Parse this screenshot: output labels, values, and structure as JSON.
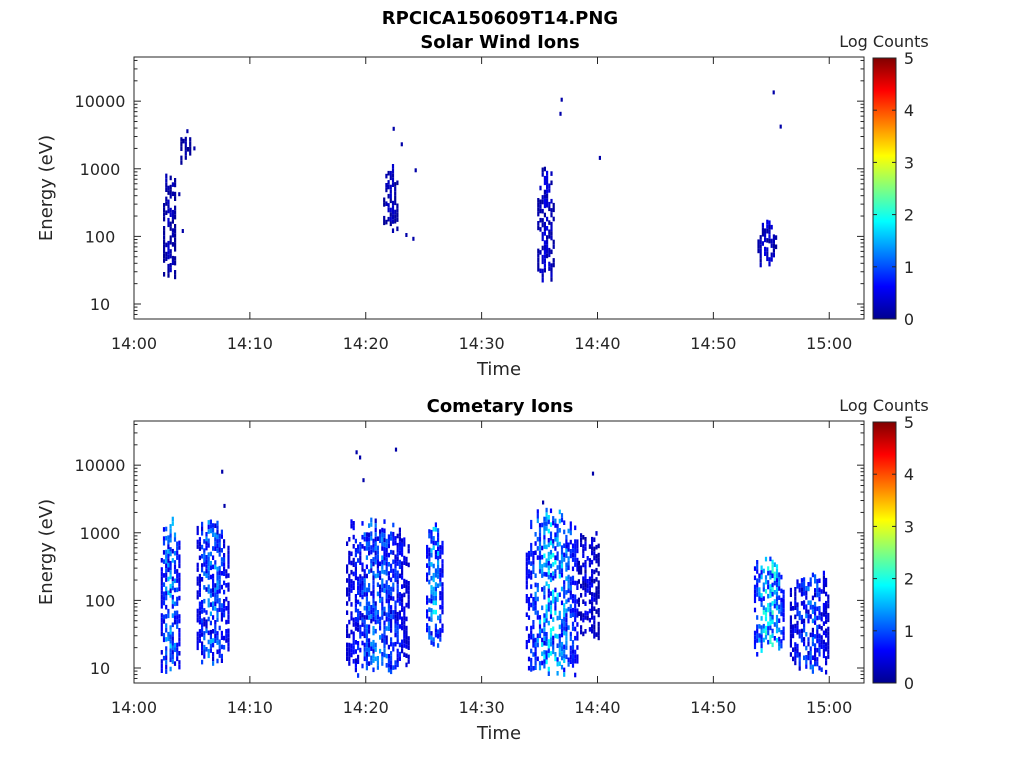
{
  "figure": {
    "title": "RPCICA150609T14.PNG"
  },
  "colorbar": {
    "label": "Log Counts",
    "range": [
      0,
      5
    ],
    "ticks": [
      "0",
      "1",
      "2",
      "3",
      "4",
      "5"
    ],
    "colormap": "jet"
  },
  "chart_data": [
    {
      "type": "heatmap",
      "title": "Solar Wind Ions",
      "xlabel": "Time",
      "ylabel": "Energy (eV)",
      "yscale": "log",
      "xlim": [
        "14:00",
        "15:03"
      ],
      "ylim": [
        6,
        45000
      ],
      "xticks": [
        "14:00",
        "14:10",
        "14:20",
        "14:30",
        "14:40",
        "14:50",
        "15:00"
      ],
      "yticks": [
        "10",
        "100",
        "1000",
        "10000"
      ],
      "grid": false,
      "clusters": [
        {
          "t_start": "14:02.5",
          "t_end": "14:03.6",
          "e_low": 25,
          "e_high": 1000,
          "level": 0.3
        },
        {
          "t_start": "14:04.0",
          "t_end": "14:05.0",
          "e_low": 1000,
          "e_high": 3500,
          "level": 0.2
        },
        {
          "t_start": "14:21.5",
          "t_end": "14:22.8",
          "e_low": 110,
          "e_high": 1200,
          "level": 0.3
        },
        {
          "t_start": "14:34.8",
          "t_end": "14:36.3",
          "e_low": 20,
          "e_high": 1100,
          "level": 0.4
        },
        {
          "t_start": "14:53.8",
          "t_end": "14:55.5",
          "e_low": 35,
          "e_high": 180,
          "level": 0.4
        }
      ],
      "points": [
        {
          "t": "14:04.6",
          "e": 3600,
          "level": 0.2
        },
        {
          "t": "14:05.2",
          "e": 2000,
          "level": 0.2
        },
        {
          "t": "14:03.9",
          "e": 420,
          "level": 0.2
        },
        {
          "t": "14:04.2",
          "e": 120,
          "level": 0.2
        },
        {
          "t": "14:22.4",
          "e": 3900,
          "level": 0.2
        },
        {
          "t": "14:23.1",
          "e": 2300,
          "level": 0.2
        },
        {
          "t": "14:24.3",
          "e": 950,
          "level": 0.2
        },
        {
          "t": "14:23.5",
          "e": 105,
          "level": 0.2
        },
        {
          "t": "14:24.1",
          "e": 92,
          "level": 0.2
        },
        {
          "t": "14:36.9",
          "e": 10500,
          "level": 0.2
        },
        {
          "t": "14:36.8",
          "e": 6500,
          "level": 0.2
        },
        {
          "t": "14:40.2",
          "e": 1450,
          "level": 0.2
        },
        {
          "t": "14:55.2",
          "e": 13500,
          "level": 0.2
        },
        {
          "t": "14:55.8",
          "e": 4200,
          "level": 0.2
        }
      ]
    },
    {
      "type": "heatmap",
      "title": "Cometary Ions",
      "xlabel": "Time",
      "ylabel": "Energy (eV)",
      "yscale": "log",
      "xlim": [
        "14:00",
        "15:03"
      ],
      "ylim": [
        6,
        45000
      ],
      "xticks": [
        "14:00",
        "14:10",
        "14:20",
        "14:30",
        "14:40",
        "14:50",
        "15:00"
      ],
      "yticks": [
        "10",
        "100",
        "1000",
        "10000"
      ],
      "grid": false,
      "clusters": [
        {
          "t_start": "14:02.3",
          "t_end": "14:04.1",
          "e_low": 8,
          "e_high": 2000,
          "level": 1.2
        },
        {
          "t_start": "14:05.4",
          "t_end": "14:08.3",
          "e_low": 12,
          "e_high": 1700,
          "level": 1.1
        },
        {
          "t_start": "14:18.3",
          "t_end": "14:23.8",
          "e_low": 8,
          "e_high": 1800,
          "level": 1.0
        },
        {
          "t_start": "14:25.2",
          "t_end": "14:26.7",
          "e_low": 20,
          "e_high": 1500,
          "level": 1.3
        },
        {
          "t_start": "14:33.8",
          "t_end": "14:38.3",
          "e_low": 8,
          "e_high": 2500,
          "level": 1.4
        },
        {
          "t_start": "14:38.3",
          "t_end": "14:40.2",
          "e_low": 25,
          "e_high": 1200,
          "level": 0.5
        },
        {
          "t_start": "14:53.5",
          "t_end": "14:56.2",
          "e_low": 15,
          "e_high": 480,
          "level": 1.6
        },
        {
          "t_start": "14:56.6",
          "t_end": "15:00.0",
          "e_low": 8,
          "e_high": 300,
          "level": 0.9
        }
      ],
      "points": [
        {
          "t": "14:07.6",
          "e": 8000,
          "level": 0.2
        },
        {
          "t": "14:07.8",
          "e": 2500,
          "level": 0.2
        },
        {
          "t": "14:19.2",
          "e": 15500,
          "level": 0.2
        },
        {
          "t": "14:19.5",
          "e": 13000,
          "level": 0.2
        },
        {
          "t": "14:22.6",
          "e": 17000,
          "level": 0.2
        },
        {
          "t": "14:19.8",
          "e": 6000,
          "level": 0.2
        },
        {
          "t": "14:35.3",
          "e": 2800,
          "level": 0.2
        },
        {
          "t": "14:39.6",
          "e": 7500,
          "level": 0.2
        }
      ]
    }
  ]
}
